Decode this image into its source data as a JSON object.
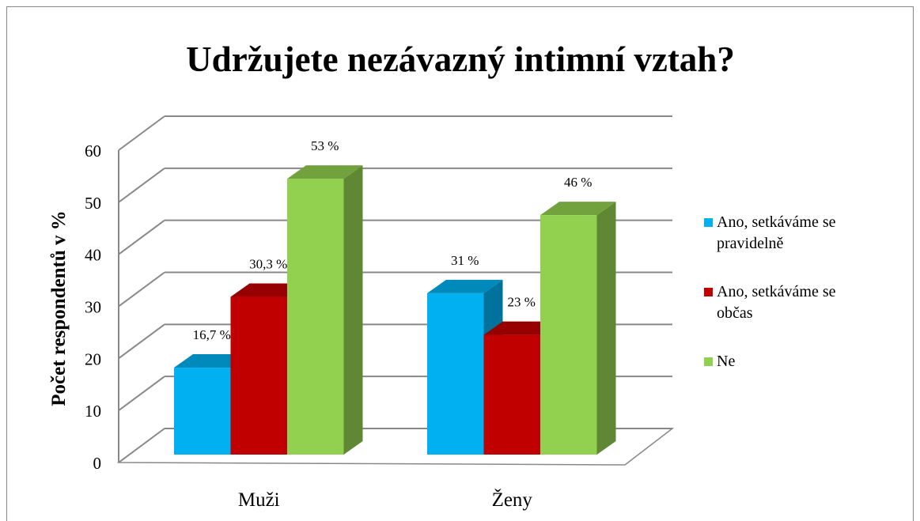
{
  "chart_data": {
    "type": "bar3d",
    "title": "Udržujete nezávazný intimní vztah?",
    "y_label": "Počet respondentů v %",
    "categories": [
      "Muži",
      "Ženy"
    ],
    "series": [
      {
        "name": "Ano, setkáváme se pravidelně",
        "color": "#00b0f0",
        "values": [
          16.7,
          31
        ],
        "value_labels": [
          "16,7 %",
          "31 %"
        ]
      },
      {
        "name": "Ano, setkáváme se občas",
        "color": "#c00000",
        "values": [
          30.3,
          23
        ],
        "value_labels": [
          "30,3 %",
          "23 %"
        ]
      },
      {
        "name": "Ne",
        "color": "#92d050",
        "values": [
          53,
          46
        ],
        "value_labels": [
          "53 %",
          "46 %"
        ]
      }
    ],
    "ylim": [
      0,
      60
    ],
    "yticks": [
      0,
      10,
      20,
      30,
      40,
      50,
      60
    ],
    "grid": true,
    "legend": "right"
  }
}
